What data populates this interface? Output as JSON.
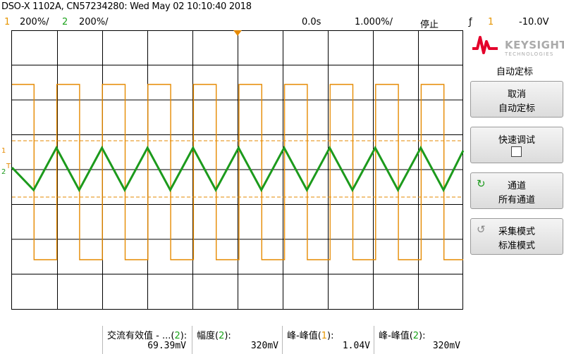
{
  "title": "DSO-X 1102A, CN57234280: Wed May 02 10:10:40 2018",
  "status": {
    "ch1_num": "1",
    "ch1_scale": "200%/",
    "ch2_num": "2",
    "ch2_scale": "200%/",
    "time_offset": "0.0s",
    "time_base": "1.000%/",
    "run_state": "停止",
    "trigger_icon": "ƒ",
    "trigger_source": "1",
    "trigger_level": "-10.0V"
  },
  "scope": {
    "colors": {
      "ch1": "#e68a00",
      "ch2": "#1c9a1c",
      "grid": "#000000"
    },
    "ch1_marker": "1",
    "ch2_marker": "2",
    "trigger_marker": "T"
  },
  "sidebar": {
    "logo": "KEYSIGHT",
    "logo_sub": "TECHNOLOGIES",
    "menu_title": "自动定标",
    "keys": [
      {
        "line1": "取消",
        "line2": "自动定标"
      },
      {
        "line1": "快速调试",
        "line2": ""
      },
      {
        "icon": "rotate-arrow-icon",
        "line1": "通道",
        "line2": "所有通道"
      },
      {
        "icon": "undo-arrow-icon",
        "line1": "采集模式",
        "line2": "标准模式"
      }
    ]
  },
  "measurements": [
    {
      "label_prefix": "交流有效值 - ...(",
      "channel": "2",
      "label_suffix": "):",
      "value": "69.39mV"
    },
    {
      "label_prefix": "幅度(",
      "channel": "2",
      "label_suffix": "):",
      "value": "320mV"
    },
    {
      "label_prefix": "峰-峰值(",
      "channel": "1",
      "label_suffix": "):",
      "value": "1.04V"
    },
    {
      "label_prefix": "峰-峰值(",
      "channel": "2",
      "label_suffix": "):",
      "value": "320mV"
    }
  ]
}
